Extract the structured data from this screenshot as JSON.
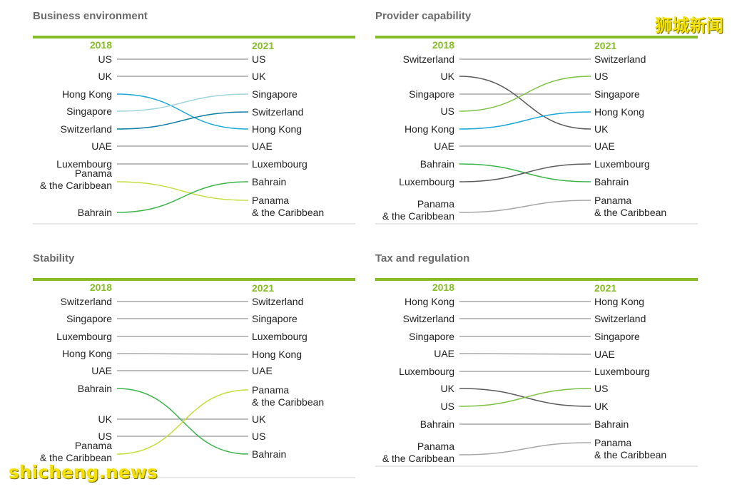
{
  "colors": {
    "accent_green": "#86bc25",
    "rule_gray": "#d0d0d0",
    "gray_line": "#a7a7a7",
    "dark_gray": "#5b5b5b",
    "light_blue": "#9fd4dd",
    "blue": "#19a7d8",
    "teal": "#0e7ea6",
    "green": "#3bb44a",
    "lime": "#c6dd3e",
    "light_green": "#7dc243"
  },
  "watermarks": {
    "top_right": "狮城新闻",
    "bottom_left": "shicheng.news"
  },
  "chart_data": [
    {
      "type": "slope",
      "title": "Business environment",
      "year_left": "2018",
      "year_right": "2021",
      "left_labels": [
        "US",
        "UK",
        "Hong Kong",
        "Singapore",
        "Switzerland",
        "UAE",
        "Luxembourg",
        "Panama\n& the Caribbean",
        "Bahrain"
      ],
      "right_labels": [
        "US",
        "UK",
        "Singapore",
        "Switzerland",
        "Hong Kong",
        "UAE",
        "Luxembourg",
        "Bahrain",
        "Panama\n& the Caribbean"
      ],
      "lines": [
        {
          "from": 1,
          "to": 1,
          "color": "gray"
        },
        {
          "from": 2,
          "to": 2,
          "color": "gray"
        },
        {
          "from": 3,
          "to": 5,
          "color": "blue"
        },
        {
          "from": 4,
          "to": 3,
          "color": "light_blue"
        },
        {
          "from": 5,
          "to": 4,
          "color": "teal"
        },
        {
          "from": 6,
          "to": 6,
          "color": "gray"
        },
        {
          "from": 7,
          "to": 7,
          "color": "gray"
        },
        {
          "from": 8,
          "to": 9,
          "color": "lime"
        },
        {
          "from": 9,
          "to": 8,
          "color": "green"
        }
      ]
    },
    {
      "type": "slope",
      "title": "Provider capability",
      "year_left": "2018",
      "year_right": "2021",
      "left_labels": [
        "Switzerland",
        "UK",
        "Singapore",
        "US",
        "Hong Kong",
        "UAE",
        "Bahrain",
        "Luxembourg",
        "Panama\n& the Caribbean"
      ],
      "right_labels": [
        "Switzerland",
        "US",
        "Singapore",
        "Hong Kong",
        "UK",
        "UAE",
        "Luxembourg",
        "Bahrain",
        "Panama\n& the Caribbean"
      ],
      "lines": [
        {
          "from": 1,
          "to": 1,
          "color": "gray"
        },
        {
          "from": 2,
          "to": 5,
          "color": "dark_gray"
        },
        {
          "from": 3,
          "to": 3,
          "color": "gray"
        },
        {
          "from": 4,
          "to": 2,
          "color": "light_green"
        },
        {
          "from": 5,
          "to": 4,
          "color": "blue"
        },
        {
          "from": 6,
          "to": 6,
          "color": "gray"
        },
        {
          "from": 7,
          "to": 8,
          "color": "green"
        },
        {
          "from": 8,
          "to": 7,
          "color": "dark_gray"
        },
        {
          "from": 9,
          "to": 9,
          "color": "gray"
        }
      ]
    },
    {
      "type": "slope",
      "title": "Stability",
      "year_left": "2018",
      "year_right": "2021",
      "left_labels": [
        "Switzerland",
        "Singapore",
        "Luxembourg",
        "Hong Kong",
        "UAE",
        "Bahrain",
        "UK",
        "US",
        "Panama\n& the Caribbean"
      ],
      "right_labels": [
        "Switzerland",
        "Singapore",
        "Luxembourg",
        "Hong Kong",
        "UAE",
        "Panama\n& the Caribbean",
        "UK",
        "US",
        "Bahrain"
      ],
      "lines": [
        {
          "from": 1,
          "to": 1,
          "color": "gray"
        },
        {
          "from": 2,
          "to": 2,
          "color": "gray"
        },
        {
          "from": 3,
          "to": 3,
          "color": "gray"
        },
        {
          "from": 4,
          "to": 4,
          "color": "gray"
        },
        {
          "from": 5,
          "to": 5,
          "color": "gray"
        },
        {
          "from": 6,
          "to": 9,
          "color": "green"
        },
        {
          "from": 7,
          "to": 7,
          "color": "gray"
        },
        {
          "from": 8,
          "to": 8,
          "color": "gray"
        },
        {
          "from": 9,
          "to": 6,
          "color": "lime"
        }
      ]
    },
    {
      "type": "slope",
      "title": "Tax and regulation",
      "year_left": "2018",
      "year_right": "2021",
      "left_labels": [
        "Hong Kong",
        "Switzerland",
        "Singapore",
        "UAE",
        "Luxembourg",
        "UK",
        "US",
        "Bahrain",
        "Panama\n& the Caribbean"
      ],
      "right_labels": [
        "Hong Kong",
        "Switzerland",
        "Singapore",
        "UAE",
        "Luxembourg",
        "US",
        "UK",
        "Bahrain",
        "Panama\n& the Caribbean"
      ],
      "lines": [
        {
          "from": 1,
          "to": 1,
          "color": "gray"
        },
        {
          "from": 2,
          "to": 2,
          "color": "gray"
        },
        {
          "from": 3,
          "to": 3,
          "color": "gray"
        },
        {
          "from": 4,
          "to": 4,
          "color": "gray"
        },
        {
          "from": 5,
          "to": 5,
          "color": "gray"
        },
        {
          "from": 6,
          "to": 7,
          "color": "dark_gray"
        },
        {
          "from": 7,
          "to": 6,
          "color": "light_green"
        },
        {
          "from": 8,
          "to": 8,
          "color": "gray"
        },
        {
          "from": 9,
          "to": 9,
          "color": "gray"
        }
      ]
    }
  ]
}
